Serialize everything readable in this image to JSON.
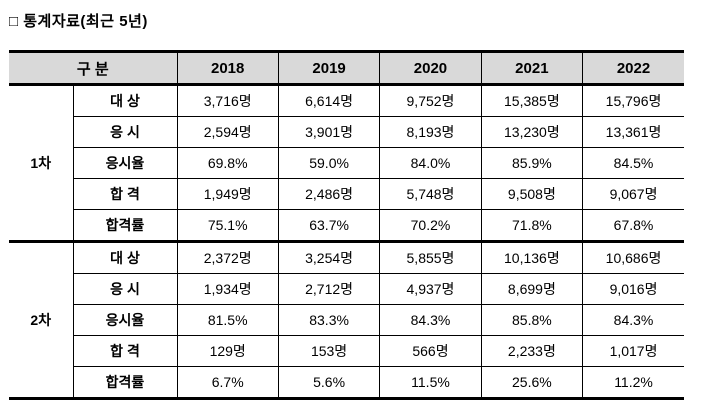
{
  "page": {
    "title": "□ 통계자료(최근 5년)"
  },
  "table": {
    "header": {
      "category_label": "구 분",
      "years": [
        "2018",
        "2019",
        "2020",
        "2021",
        "2022"
      ]
    },
    "sections": [
      {
        "label": "1차",
        "rows": [
          {
            "label": "대 상",
            "values": [
              "3,716명",
              "6,614명",
              "9,752명",
              "15,385명",
              "15,796명"
            ]
          },
          {
            "label": "응 시",
            "values": [
              "2,594명",
              "3,901명",
              "8,193명",
              "13,230명",
              "13,361명"
            ]
          },
          {
            "label": "응시율",
            "values": [
              "69.8%",
              "59.0%",
              "84.0%",
              "85.9%",
              "84.5%"
            ]
          },
          {
            "label": "합 격",
            "values": [
              "1,949명",
              "2,486명",
              "5,748명",
              "9,508명",
              "9,067명"
            ]
          },
          {
            "label": "합격률",
            "values": [
              "75.1%",
              "63.7%",
              "70.2%",
              "71.8%",
              "67.8%"
            ]
          }
        ]
      },
      {
        "label": "2차",
        "rows": [
          {
            "label": "대 상",
            "values": [
              "2,372명",
              "3,254명",
              "5,855명",
              "10,136명",
              "10,686명"
            ]
          },
          {
            "label": "응 시",
            "values": [
              "1,934명",
              "2,712명",
              "4,937명",
              "8,699명",
              "9,016명"
            ]
          },
          {
            "label": "응시율",
            "values": [
              "81.5%",
              "83.3%",
              "84.3%",
              "85.8%",
              "84.3%"
            ]
          },
          {
            "label": "합 격",
            "values": [
              "129명",
              "153명",
              "566명",
              "2,233명",
              "1,017명"
            ]
          },
          {
            "label": "합격률",
            "values": [
              "6.7%",
              "5.6%",
              "11.5%",
              "25.6%",
              "11.2%"
            ]
          }
        ]
      }
    ]
  },
  "colors": {
    "header_bg": "#d9d9d9",
    "border": "#000000",
    "text": "#000000",
    "background": "#ffffff"
  }
}
